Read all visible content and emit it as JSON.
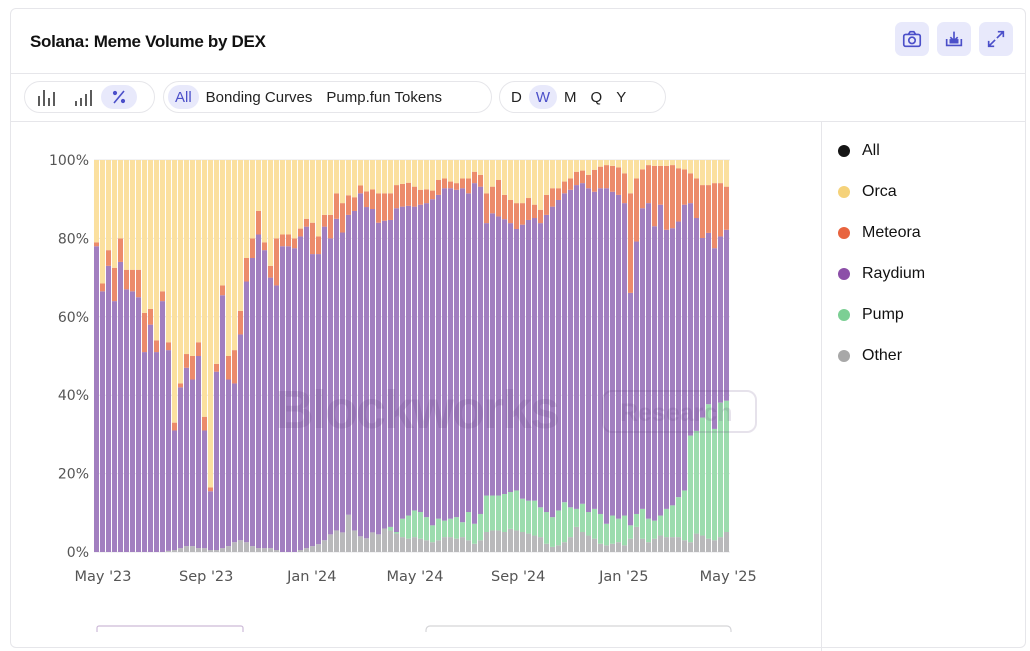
{
  "header": {
    "title": "Solana: Meme Volume by DEX",
    "buttons": [
      {
        "icon": "camera-icon"
      },
      {
        "icon": "download-icon"
      },
      {
        "icon": "expand-icon"
      }
    ]
  },
  "toolbar": {
    "chart_modes": [
      {
        "icon": "bar-chart-icon"
      },
      {
        "icon": "bar-chart-small-icon"
      },
      {
        "icon": "percent-icon",
        "active": true
      }
    ],
    "filters": [
      {
        "label": "All",
        "active": true
      },
      {
        "label": "Bonding Curves"
      },
      {
        "label": "Pump.fun Tokens"
      }
    ],
    "intervals": [
      {
        "label": "D"
      },
      {
        "label": "W",
        "active": true
      },
      {
        "label": "M"
      },
      {
        "label": "Q"
      },
      {
        "label": "Y"
      }
    ]
  },
  "legend": [
    {
      "label": "All",
      "color": "#151515"
    },
    {
      "label": "Orca",
      "color": "#f5d27a"
    },
    {
      "label": "Meteora",
      "color": "#e8643f"
    },
    {
      "label": "Raydium",
      "color": "#8c4fa8"
    },
    {
      "label": "Pump",
      "color": "#7ccf94"
    },
    {
      "label": "Other",
      "color": "#a8a8a8"
    }
  ],
  "watermark": {
    "text": "Blockworks",
    "badge": "Research"
  },
  "chart_data": {
    "type": "bar",
    "stacked": true,
    "normalized": true,
    "title": "Solana: Meme Volume by DEX",
    "interval": "weekly",
    "ylim": [
      0,
      100
    ],
    "y_ticks": [
      "0%",
      "20%",
      "40%",
      "60%",
      "80%",
      "100%"
    ],
    "x_ticks": [
      {
        "label": "May '23",
        "week": 1.5
      },
      {
        "label": "Sep '23",
        "week": 18.7
      },
      {
        "label": "Jan '24",
        "week": 36.3
      },
      {
        "label": "May '24",
        "week": 53.5
      },
      {
        "label": "Sep '24",
        "week": 70.7
      },
      {
        "label": "Jan '25",
        "week": 88.3
      },
      {
        "label": "May '25",
        "week": 105.7
      }
    ],
    "grid": true,
    "legend_position": "right",
    "series": [
      {
        "name": "Other",
        "color": "#b9b9bb",
        "values": [
          0,
          0,
          0,
          0,
          0,
          0,
          0,
          0,
          0,
          0,
          0,
          0,
          0.3,
          0.5,
          1,
          1.5,
          1.5,
          1,
          1,
          0.5,
          0.5,
          1,
          1.5,
          2.5,
          3,
          2.5,
          1.5,
          1,
          1,
          1,
          0.5,
          0,
          0,
          0,
          0.5,
          1,
          1.5,
          2,
          3,
          4.5,
          5.5,
          5,
          9.5,
          5.5,
          4,
          3.5,
          5,
          4.5,
          6,
          5.5,
          4.7,
          3.8,
          3.4,
          3.8,
          3.4,
          3.0,
          2.5,
          3.0,
          3.8,
          3.8,
          3.4,
          3.8,
          3.0,
          2.1,
          3.0,
          5.1,
          5.5,
          5.5,
          5.1,
          5.9,
          5.5,
          5.1,
          4.7,
          4.2,
          3.8,
          2.1,
          1.3,
          1.7,
          2.5,
          3.8,
          6.4,
          5.1,
          4.2,
          3.4,
          2.1,
          1.7,
          2.1,
          2.5,
          1.7,
          3.4,
          6.4,
          3.4,
          2.5,
          3.4,
          4.2,
          3.8,
          3.8,
          3.8,
          3.0,
          2.5,
          4.7,
          4.2,
          3.4,
          3.0,
          3.8,
          5.1
        ]
      },
      {
        "name": "Pump",
        "color": "#9cdcae",
        "values": [
          0,
          0,
          0,
          0,
          0,
          0,
          0,
          0,
          0,
          0,
          0,
          0,
          0,
          0,
          0,
          0,
          0,
          0,
          0,
          0,
          0,
          0,
          0,
          0,
          0,
          0,
          0,
          0,
          0,
          0,
          0,
          0,
          0,
          0,
          0,
          0,
          0,
          0,
          0,
          0,
          0,
          0,
          0,
          0,
          0,
          0,
          0,
          0,
          0,
          0.9,
          0.4,
          4.7,
          5.9,
          6.8,
          6.8,
          5.9,
          4.3,
          5.5,
          4.2,
          4.7,
          5.5,
          3.8,
          7.2,
          5.1,
          6.7,
          9.3,
          8.9,
          8.9,
          9.7,
          9.4,
          10.2,
          8.5,
          8.4,
          8.9,
          7.6,
          8.1,
          7.6,
          8.9,
          10.2,
          7.6,
          4.6,
          7.2,
          6.0,
          7.6,
          7.6,
          5.5,
          7.2,
          6.0,
          7.6,
          3.4,
          3.3,
          7.6,
          6.0,
          4.6,
          5.1,
          7.2,
          8.1,
          10.2,
          12.7,
          27.2,
          26.2,
          30.1,
          34.3,
          28.4,
          34.3,
          33.5
        ]
      },
      {
        "name": "Raydium",
        "color": "#a27fc0",
        "values": [
          78,
          66.5,
          73,
          64,
          74,
          67,
          66.5,
          65,
          51,
          58,
          51,
          64,
          51.2,
          30.5,
          41,
          45.5,
          42.5,
          49,
          30,
          15,
          45.5,
          64.5,
          42.5,
          40.5,
          52.5,
          66.5,
          73.5,
          80,
          76,
          69,
          67.5,
          78,
          78,
          77.5,
          80,
          82,
          74.5,
          74,
          80,
          75.5,
          79.5,
          76.5,
          76.5,
          81.5,
          87.5,
          84.5,
          82.5,
          79.5,
          78.5,
          78.3,
          82.6,
          79.6,
          79.0,
          77.5,
          78.4,
          80.1,
          83.2,
          82.6,
          84.8,
          84.3,
          83.5,
          85.2,
          81.3,
          86.9,
          83.5,
          69.5,
          72.0,
          71.2,
          70.1,
          68.6,
          66.7,
          69.9,
          71.6,
          72.1,
          72.5,
          75.8,
          79.2,
          79.2,
          78.8,
          81.0,
          82.6,
          81.8,
          82.6,
          80.9,
          83.1,
          85.6,
          82.6,
          82.6,
          79.7,
          59.3,
          69.5,
          76.7,
          80.5,
          75.1,
          79.3,
          71.2,
          70.7,
          70.3,
          72.9,
          59.3,
          54.3,
          45.8,
          43.7,
          46.1,
          42.4,
          43.6
        ]
      },
      {
        "name": "Meteora",
        "color": "#ec8b6b",
        "values": [
          1,
          2,
          4,
          8.5,
          6,
          5,
          5.5,
          7,
          10,
          4,
          3,
          2.5,
          2,
          2,
          1,
          3.5,
          6,
          3.5,
          3.5,
          1,
          2,
          2.5,
          6,
          8.5,
          6,
          6,
          5,
          6,
          2,
          3,
          12,
          3,
          3,
          2.5,
          2,
          2,
          8,
          4.5,
          3,
          6,
          6.5,
          7.5,
          5,
          3.5,
          2,
          4,
          5,
          7.5,
          7,
          6.8,
          5.9,
          5.8,
          5.9,
          5.1,
          3.8,
          3.5,
          2.2,
          3.8,
          2.5,
          1.7,
          1.7,
          2.5,
          3.8,
          2.9,
          3.0,
          7.6,
          6.8,
          9.3,
          6.2,
          5.9,
          6.6,
          5.5,
          5.6,
          3.4,
          3.4,
          5.1,
          4.7,
          3.0,
          3.0,
          2.9,
          3.4,
          3.2,
          3.4,
          5.6,
          5.5,
          5.9,
          6.6,
          7.0,
          7.6,
          25.4,
          16.1,
          9.9,
          9.7,
          15.4,
          9.9,
          16.3,
          16.1,
          13.6,
          9.0,
          7.6,
          10.1,
          13.5,
          12.2,
          16.6,
          13.6,
          11.0
        ]
      },
      {
        "name": "Orca",
        "color": "#fbe09f",
        "values": [
          21,
          31.5,
          23,
          27.5,
          20,
          28,
          28,
          28,
          39,
          38,
          46,
          33.5,
          46.5,
          67,
          57,
          49.5,
          50,
          46.5,
          65.5,
          83.5,
          52,
          32,
          50,
          48.5,
          38.5,
          25,
          20,
          13,
          21,
          27,
          20,
          19,
          19,
          20,
          17.5,
          15,
          16,
          19.5,
          14,
          14,
          8.5,
          11,
          9,
          9.5,
          6.5,
          8,
          7.5,
          8.5,
          8.5,
          8.5,
          6.4,
          6.1,
          5.8,
          6.8,
          7.6,
          7.5,
          7.8,
          5.1,
          4.7,
          5.5,
          5.9,
          4.7,
          4.7,
          3.0,
          3.8,
          8.5,
          6.8,
          5.1,
          8.9,
          10.2,
          11.0,
          11.0,
          9.7,
          11.4,
          12.7,
          8.9,
          7.2,
          7.2,
          5.5,
          4.7,
          3.0,
          2.7,
          3.8,
          2.5,
          1.7,
          1.3,
          1.5,
          1.9,
          3.4,
          8.5,
          4.7,
          2.4,
          1.3,
          1.5,
          1.5,
          1.5,
          1.3,
          2.1,
          2.4,
          3.4,
          4.7,
          6.4,
          6.4,
          5.9,
          5.9,
          6.8
        ]
      }
    ]
  }
}
